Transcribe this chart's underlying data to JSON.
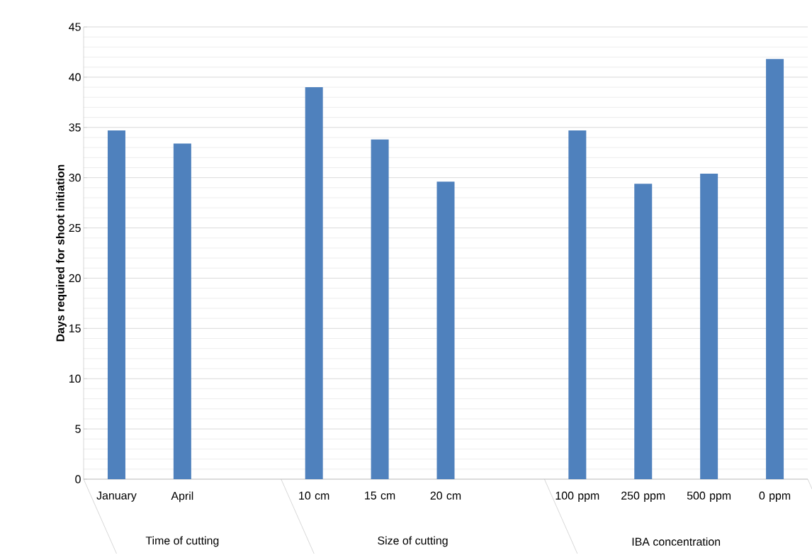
{
  "chart_data": {
    "type": "bar",
    "ylabel": "Days required for shoot initiation",
    "categories": [
      "January",
      "April",
      null,
      "10 cm",
      "15 cm",
      "20 cm",
      null,
      "100 ppm",
      "250 ppm",
      "500 ppm",
      "0 ppm"
    ],
    "values": [
      34.7,
      33.4,
      null,
      39.0,
      33.8,
      29.6,
      null,
      34.7,
      29.4,
      30.4,
      41.8
    ],
    "color": "#4f81bd",
    "ylim": [
      0,
      45
    ],
    "yticks": [
      0,
      5,
      10,
      15,
      20,
      25,
      30,
      35,
      40,
      45
    ],
    "grid": true,
    "annotations": [
      "Time of cutting",
      "Size of cutting",
      "IBA concentration"
    ]
  }
}
